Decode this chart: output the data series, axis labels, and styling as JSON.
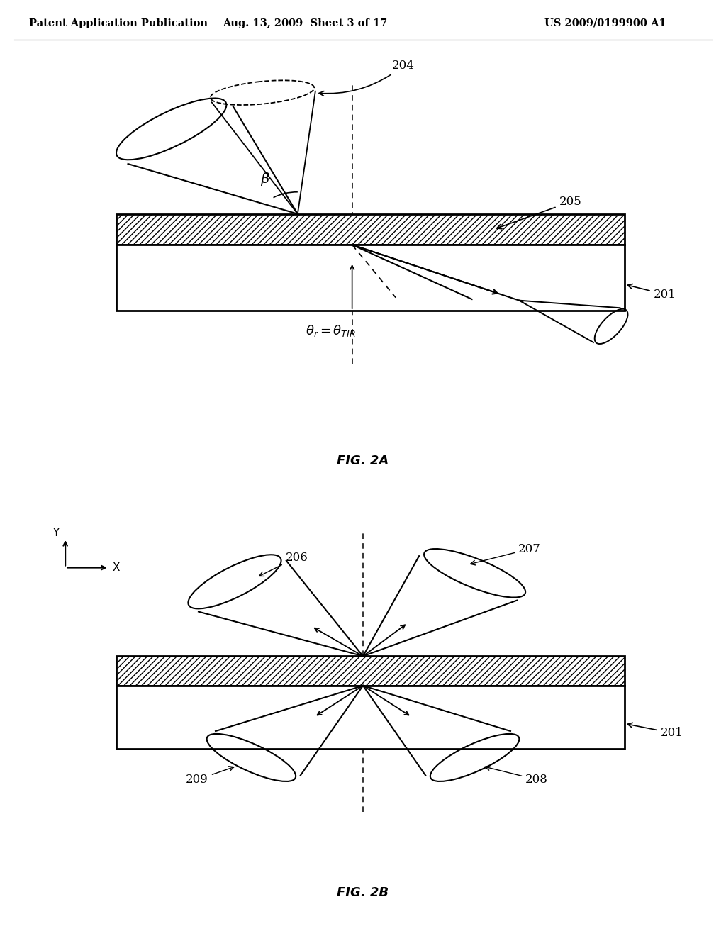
{
  "title_left": "Patent Application Publication",
  "title_mid": "Aug. 13, 2009  Sheet 3 of 17",
  "title_right": "US 2009/0199900 A1",
  "fig2a_label": "FIG. 2A",
  "fig2b_label": "FIG. 2B",
  "label_201a": "201",
  "label_201b": "201",
  "label_204": "204",
  "label_205": "205",
  "label_206": "206",
  "label_207": "207",
  "label_208": "208",
  "label_209": "209",
  "background_color": "#ffffff",
  "line_color": "#000000"
}
